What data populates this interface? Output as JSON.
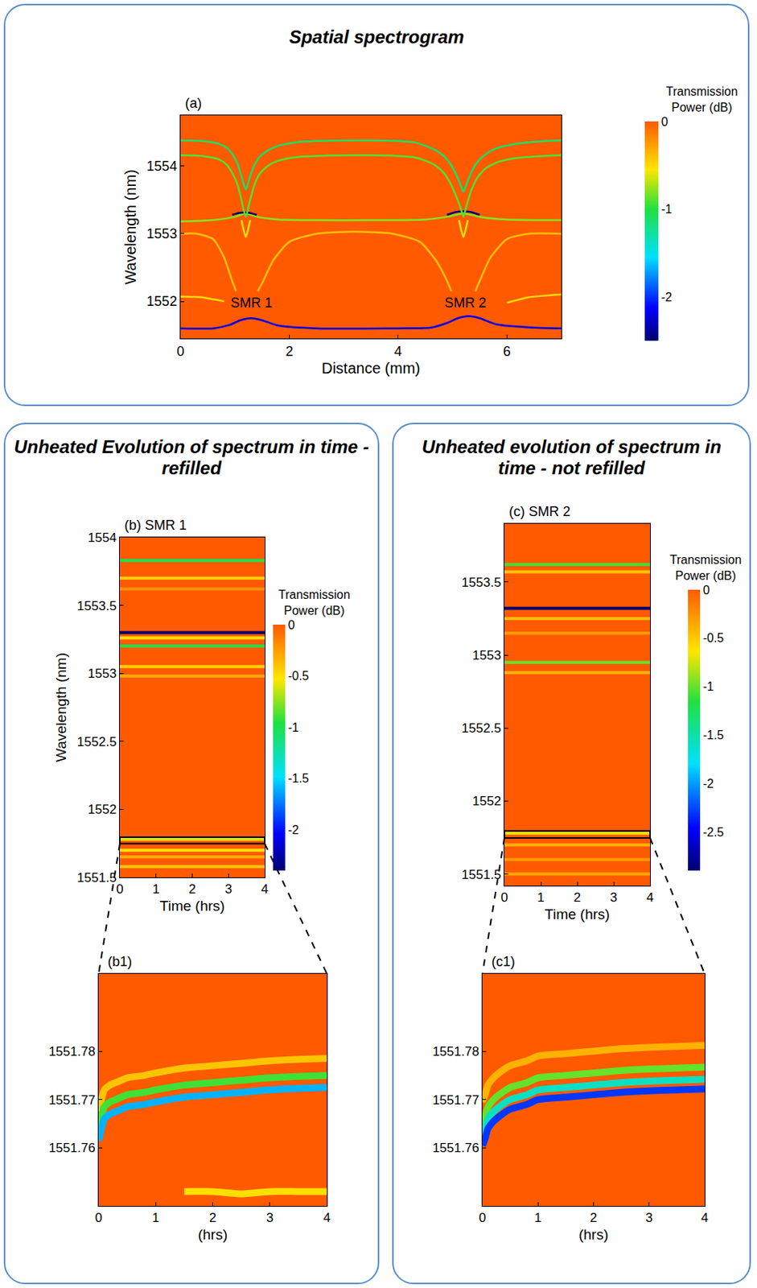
{
  "box_titles": [
    "Spatial spectrogram",
    "Unheated Evolution of spectrum in time - refilled",
    "Unheated evolution of spectrum in time - not refilled"
  ],
  "chart_data": [
    {
      "type": "heatmap",
      "label": "(a)",
      "x_label": "Distance (mm)",
      "y_label": "Wavelength (nm)",
      "xlim": [
        0,
        7
      ],
      "ylim": [
        1551.45,
        1554.75
      ],
      "xticks": [
        0,
        2,
        4,
        6
      ],
      "yticks": [
        1552,
        1553,
        1554
      ],
      "background": 0,
      "colorbar": {
        "title": "Transmission Power (dB)",
        "range": [
          -2.5,
          0
        ],
        "ticks": [
          -2,
          -1,
          0
        ]
      },
      "resonances": [
        {
          "value": -0.4,
          "x": [
            0,
            0.3,
            0.6,
            0.8,
            0.95,
            1.02
          ],
          "y": [
            1553.0,
            1553.0,
            1552.92,
            1552.65,
            1552.3,
            1552.15
          ]
        },
        {
          "value": -0.4,
          "x": [
            1.42,
            1.52,
            1.7,
            2.0,
            2.5,
            3.2,
            3.9,
            4.4,
            4.7,
            4.9,
            4.98
          ],
          "y": [
            1552.15,
            1552.3,
            1552.6,
            1552.88,
            1553.0,
            1553.03,
            1553.0,
            1552.88,
            1552.6,
            1552.3,
            1552.15
          ]
        },
        {
          "value": -0.4,
          "x": [
            5.42,
            5.5,
            5.7,
            6.0,
            6.4,
            7
          ],
          "y": [
            1552.15,
            1552.3,
            1552.65,
            1552.92,
            1553.0,
            1553.0
          ]
        },
        {
          "value": -0.5,
          "x": [
            0,
            0.4,
            0.6,
            0.8
          ],
          "y": [
            1552.07,
            1552.06,
            1552.03,
            1552.0
          ]
        },
        {
          "value": -0.5,
          "x": [
            6.0,
            6.4,
            6.8,
            7
          ],
          "y": [
            1551.98,
            1552.06,
            1552.09,
            1552.1
          ]
        },
        {
          "value": -0.6,
          "x": [
            1.12,
            1.2,
            1.28
          ],
          "y": [
            1553.2,
            1552.95,
            1553.2
          ]
        },
        {
          "value": -0.6,
          "x": [
            5.12,
            5.2,
            5.28
          ],
          "y": [
            1553.2,
            1552.95,
            1553.2
          ]
        },
        {
          "value": -0.8,
          "x": [
            0,
            0.6,
            1.0,
            1.2,
            1.4,
            1.8,
            2.5,
            3.5,
            4.5,
            4.9,
            5.2,
            5.5,
            6,
            7
          ],
          "y": [
            1553.18,
            1553.2,
            1553.25,
            1553.3,
            1553.25,
            1553.21,
            1553.2,
            1553.2,
            1553.21,
            1553.25,
            1553.3,
            1553.25,
            1553.21,
            1553.2
          ]
        },
        {
          "value": -2.5,
          "x": [
            0.95,
            1.1,
            1.25,
            1.4
          ],
          "y": [
            1553.28,
            1553.31,
            1553.31,
            1553.28
          ]
        },
        {
          "value": -2.5,
          "x": [
            4.9,
            5.05,
            5.2,
            5.35,
            5.5
          ],
          "y": [
            1553.28,
            1553.32,
            1553.33,
            1553.32,
            1553.28
          ]
        },
        {
          "value": -0.9,
          "x": [
            0,
            0.4,
            0.7,
            0.85,
            0.95,
            1.05,
            1.12,
            1.2,
            1.28,
            1.35,
            1.45,
            1.6,
            1.8,
            2.1,
            2.5,
            3.5,
            4.0,
            4.3,
            4.5,
            4.7,
            4.85,
            4.97,
            5.07,
            5.15,
            5.2,
            5.26,
            5.34,
            5.45,
            5.6,
            5.8,
            6.1,
            6.5,
            7
          ],
          "y": [
            1554.16,
            1554.15,
            1554.1,
            1554.02,
            1553.9,
            1553.72,
            1553.5,
            1553.25,
            1553.5,
            1553.7,
            1553.88,
            1554.0,
            1554.08,
            1554.13,
            1554.15,
            1554.16,
            1554.15,
            1554.13,
            1554.08,
            1554.0,
            1553.89,
            1553.73,
            1553.55,
            1553.38,
            1553.25,
            1553.42,
            1553.63,
            1553.82,
            1553.96,
            1554.05,
            1554.11,
            1554.14,
            1554.16
          ]
        },
        {
          "value": -1.1,
          "x": [
            0,
            0.4,
            0.7,
            0.85,
            0.95,
            1.05,
            1.12,
            1.2,
            1.28,
            1.35,
            1.45,
            1.6,
            1.8,
            2.1,
            2.5,
            3.5,
            4.0,
            4.3,
            4.5,
            4.7,
            4.85,
            4.97,
            5.07,
            5.15,
            5.2,
            5.26,
            5.34,
            5.45,
            5.6,
            5.8,
            6.1,
            6.5,
            7
          ],
          "y": [
            1554.38,
            1554.37,
            1554.33,
            1554.27,
            1554.18,
            1554.03,
            1553.85,
            1553.65,
            1553.85,
            1554.0,
            1554.13,
            1554.23,
            1554.3,
            1554.35,
            1554.37,
            1554.38,
            1554.37,
            1554.35,
            1554.3,
            1554.23,
            1554.14,
            1554.02,
            1553.87,
            1553.72,
            1553.62,
            1553.74,
            1553.9,
            1554.05,
            1554.17,
            1554.26,
            1554.32,
            1554.36,
            1554.38
          ]
        },
        {
          "value": -2.2,
          "x": [
            0,
            0.6,
            0.9,
            1.1,
            1.3,
            1.5,
            1.8,
            2.5,
            4.0,
            4.6,
            4.9,
            5.1,
            5.3,
            5.5,
            5.8,
            6.5,
            7
          ],
          "y": [
            1551.6,
            1551.6,
            1551.65,
            1551.72,
            1551.75,
            1551.72,
            1551.64,
            1551.6,
            1551.6,
            1551.61,
            1551.68,
            1551.75,
            1551.78,
            1551.75,
            1551.66,
            1551.61,
            1551.6
          ]
        }
      ],
      "annotations": [
        {
          "text": "SMR 1",
          "x": 1.3,
          "y": 1551.98
        },
        {
          "text": "SMR 2",
          "x": 5.24,
          "y": 1551.98
        }
      ]
    },
    {
      "type": "heatmap",
      "label": "(b)",
      "title": "SMR 1",
      "x_label": "Time (hrs)",
      "y_label": "Wavelength (nm)",
      "xlim": [
        0,
        4
      ],
      "ylim": [
        1551.5,
        1554
      ],
      "xticks": [
        0,
        1,
        2,
        3,
        4
      ],
      "yticks": [
        1551.5,
        1552,
        1552.5,
        1553,
        1553.5,
        1554
      ],
      "background": 0,
      "colorbar": {
        "title": "Transmission Power (dB)",
        "range": [
          -2.4,
          0
        ],
        "ticks": [
          -2,
          -1.5,
          -1,
          -0.5,
          0
        ]
      },
      "bands": [
        {
          "wavelength": 1553.83,
          "value": -1.0
        },
        {
          "wavelength": 1553.7,
          "value": -0.45
        },
        {
          "wavelength": 1553.62,
          "value": -0.2
        },
        {
          "wavelength": 1553.26,
          "value": -0.5
        },
        {
          "wavelength": 1553.2,
          "value": -1.0
        },
        {
          "wavelength": 1553.3,
          "value": -2.4
        },
        {
          "wavelength": 1553.05,
          "value": -0.45
        },
        {
          "wavelength": 1552.98,
          "value": -0.3
        },
        {
          "wavelength": 1551.78,
          "value": -0.6
        },
        {
          "wavelength": 1551.7,
          "value": -0.5
        },
        {
          "wavelength": 1551.65,
          "value": -0.3
        },
        {
          "wavelength": 1551.58,
          "value": -0.4
        }
      ],
      "zoom": {
        "label": "(b1)",
        "x_label": "(hrs)",
        "xlim": [
          0,
          4
        ],
        "ylim": [
          1551.748,
          1551.796
        ],
        "xticks": [
          0,
          1,
          2,
          3,
          4
        ],
        "yticks": [
          1551.76,
          1551.77,
          1551.78
        ],
        "background": 0,
        "resonances": [
          {
            "value": -0.4,
            "x": [
              0,
              0.05,
              0.1,
              0.2,
              0.3,
              0.5,
              0.8,
              1.0,
              1.5,
              2.0,
              2.5,
              3.0,
              3.5,
              4.0
            ],
            "y": [
              1551.7675,
              1551.77,
              1551.772,
              1551.773,
              1551.7735,
              1551.7745,
              1551.775,
              1551.7755,
              1551.7765,
              1551.777,
              1551.7775,
              1551.778,
              1551.7783,
              1551.7785
            ]
          },
          {
            "value": -0.9,
            "x": [
              0,
              0.05,
              0.1,
              0.2,
              0.3,
              0.5,
              0.8,
              1.0,
              1.5,
              2.0,
              2.5,
              3.0,
              3.5,
              4.0
            ],
            "y": [
              1551.764,
              1551.7665,
              1551.7685,
              1551.7695,
              1551.77,
              1551.771,
              1551.7715,
              1551.772,
              1551.773,
              1551.7735,
              1551.774,
              1551.7745,
              1551.7748,
              1551.775
            ]
          },
          {
            "value": -1.6,
            "x": [
              0,
              0.05,
              0.1,
              0.2,
              0.3,
              0.5,
              0.8,
              1.0,
              1.5,
              2.0,
              2.5,
              3.0,
              3.5,
              4.0
            ],
            "y": [
              1551.7615,
              1551.764,
              1551.766,
              1551.767,
              1551.7675,
              1551.7685,
              1551.769,
              1551.7695,
              1551.7705,
              1551.771,
              1551.7715,
              1551.772,
              1551.7723,
              1551.7725
            ]
          },
          {
            "value": -0.5,
            "x": [
              1.5,
              2,
              2.5,
              3,
              3.5,
              4
            ],
            "y": [
              1551.751,
              1551.751,
              1551.7505,
              1551.751,
              1551.751,
              1551.751
            ]
          }
        ]
      }
    },
    {
      "type": "heatmap",
      "label": "(c)",
      "title": "SMR 2",
      "x_label": "Time (hrs)",
      "xlim": [
        0,
        4
      ],
      "ylim": [
        1551.42,
        1553.9
      ],
      "xticks": [
        0,
        1,
        2,
        3,
        4
      ],
      "yticks": [
        1551.5,
        1552,
        1552.5,
        1553,
        1553.5
      ],
      "background": 0,
      "colorbar": {
        "title": "Transmission Power (dB)",
        "range": [
          -2.9,
          0
        ],
        "ticks": [
          -2.5,
          -2,
          -1.5,
          -1,
          -0.5,
          0
        ]
      },
      "bands": [
        {
          "wavelength": 1553.62,
          "value": -1.1
        },
        {
          "wavelength": 1553.57,
          "value": -0.5
        },
        {
          "wavelength": 1553.25,
          "value": -0.45
        },
        {
          "wavelength": 1553.15,
          "value": -0.3
        },
        {
          "wavelength": 1553.32,
          "value": -2.9
        },
        {
          "wavelength": 1552.95,
          "value": -1.0
        },
        {
          "wavelength": 1552.88,
          "value": -0.4
        },
        {
          "wavelength": 1551.78,
          "value": -0.7
        },
        {
          "wavelength": 1551.7,
          "value": -0.4
        },
        {
          "wavelength": 1551.6,
          "value": -0.3
        },
        {
          "wavelength": 1551.5,
          "value": -0.35
        }
      ],
      "zoom": {
        "label": "(c1)",
        "x_label": "(hrs)",
        "xlim": [
          0,
          4
        ],
        "ylim": [
          1551.748,
          1551.796
        ],
        "xticks": [
          0,
          1,
          2,
          3,
          4
        ],
        "yticks": [
          1551.76,
          1551.77,
          1551.78
        ],
        "background": 0,
        "resonances": [
          {
            "value": -0.4,
            "x": [
              0,
              0.05,
              0.1,
              0.2,
              0.3,
              0.5,
              0.8,
              1.0,
              1.5,
              2.0,
              2.5,
              3.0,
              3.5,
              4.0
            ],
            "y": [
              1551.7695,
              1551.771,
              1551.773,
              1551.7745,
              1551.7755,
              1551.777,
              1551.778,
              1551.779,
              1551.7795,
              1551.78,
              1551.7805,
              1551.7808,
              1551.781,
              1551.7812
            ]
          },
          {
            "value": -1.0,
            "x": [
              0,
              0.05,
              0.1,
              0.2,
              0.3,
              0.5,
              0.8,
              1.0,
              1.5,
              2.0,
              2.5,
              3.0,
              3.5,
              4.0
            ],
            "y": [
              1551.765,
              1551.7665,
              1551.7685,
              1551.77,
              1551.771,
              1551.7725,
              1551.7735,
              1551.7745,
              1551.775,
              1551.7755,
              1551.776,
              1551.7763,
              1551.7765,
              1551.7767
            ]
          },
          {
            "value": -1.6,
            "x": [
              0,
              0.05,
              0.1,
              0.2,
              0.3,
              0.5,
              0.8,
              1.0,
              1.5,
              2.0,
              2.5,
              3.0,
              3.5,
              4.0
            ],
            "y": [
              1551.7625,
              1551.764,
              1551.766,
              1551.7675,
              1551.7685,
              1551.77,
              1551.771,
              1551.772,
              1551.7725,
              1551.773,
              1551.7735,
              1551.7738,
              1551.774,
              1551.7742
            ]
          },
          {
            "value": -2.3,
            "x": [
              0,
              0.05,
              0.1,
              0.2,
              0.3,
              0.5,
              0.8,
              1.0,
              1.5,
              2.0,
              2.5,
              3.0,
              3.5,
              4.0
            ],
            "y": [
              1551.7605,
              1551.762,
              1551.764,
              1551.7655,
              1551.7665,
              1551.768,
              1551.769,
              1551.77,
              1551.7705,
              1551.771,
              1551.7715,
              1551.7718,
              1551.772,
              1551.7722
            ]
          }
        ]
      }
    }
  ]
}
